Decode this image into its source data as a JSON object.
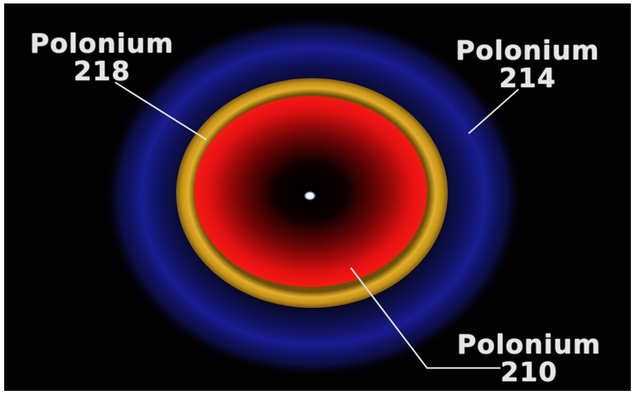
{
  "labels": {
    "po218": {
      "name": "Polonium",
      "number": "218"
    },
    "po214": {
      "name": "Polonium",
      "number": "214"
    },
    "po210": {
      "name": "Polonium",
      "number": "210"
    }
  },
  "colors": {
    "background": "#020203",
    "outer_halo": "#1a1e9a",
    "gold_ring": "#e0b02a",
    "red_core": "#f01414",
    "center_dot": "#e8f0ff",
    "pointer_line": "#d8d8d8"
  }
}
